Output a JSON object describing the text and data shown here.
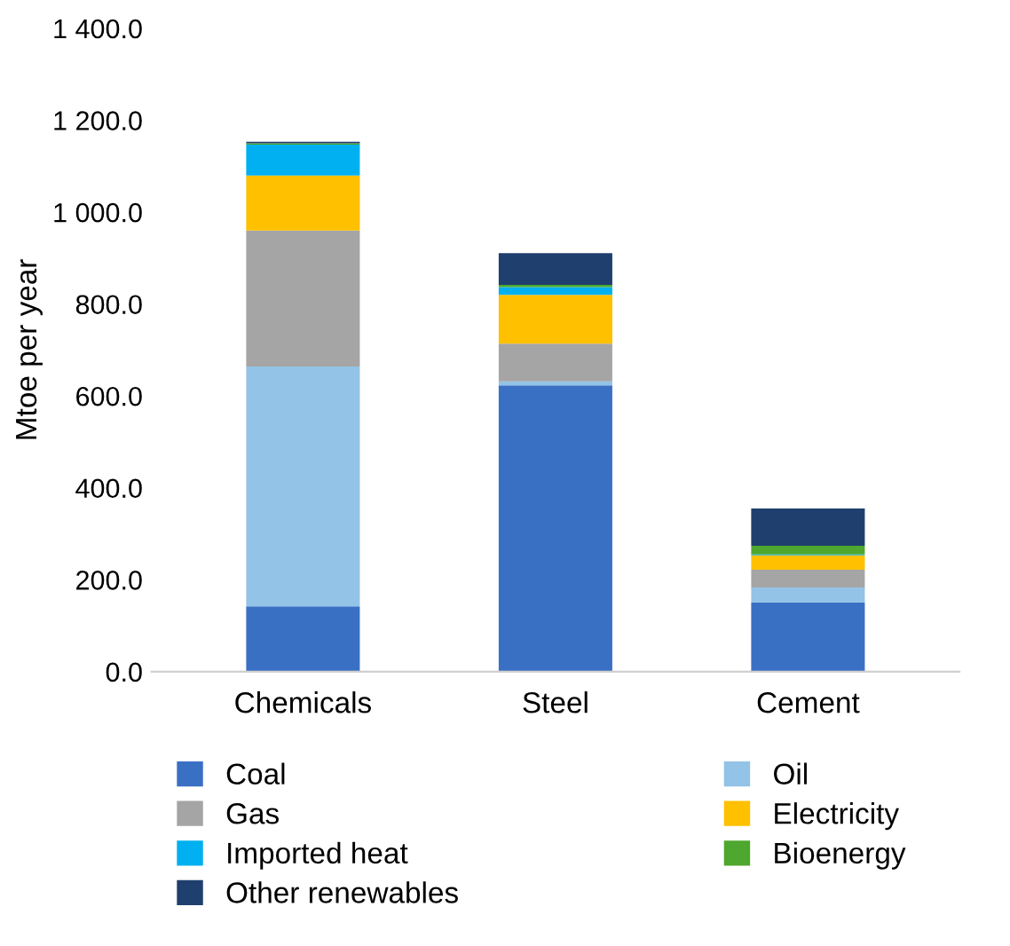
{
  "chart_data": {
    "type": "bar",
    "stacked": true,
    "ylabel": "Mtoe per year",
    "categories": [
      "Chemicals",
      "Steel",
      "Cement"
    ],
    "series": [
      {
        "name": "Coal",
        "color": "#3a70c4",
        "values": [
          142,
          623,
          151
        ]
      },
      {
        "name": "Oil",
        "color": "#93c3e6",
        "values": [
          522,
          9,
          32
        ]
      },
      {
        "name": "Gas",
        "color": "#a5a5a5",
        "values": [
          296,
          82,
          39
        ]
      },
      {
        "name": "Electricity",
        "color": "#ffc000",
        "values": [
          120,
          106,
          31
        ]
      },
      {
        "name": "Imported heat",
        "color": "#00b0f0",
        "values": [
          67,
          17,
          2
        ]
      },
      {
        "name": "Bioenergy",
        "color": "#4ea72e",
        "values": [
          3,
          5,
          19
        ]
      },
      {
        "name": "Other renewables",
        "color": "#1f3f6e",
        "values": [
          3,
          69,
          81
        ]
      }
    ],
    "ylim": [
      0,
      1400
    ],
    "yticks": [
      {
        "value": 0,
        "label": "0.0"
      },
      {
        "value": 200,
        "label": "200.0"
      },
      {
        "value": 400,
        "label": "400.0"
      },
      {
        "value": 600,
        "label": "600.0"
      },
      {
        "value": 800,
        "label": "800.0"
      },
      {
        "value": 1000,
        "label": "1 000.0"
      },
      {
        "value": 1200,
        "label": "1 200.0"
      },
      {
        "value": 1400,
        "label": "1 400.0"
      }
    ],
    "grid": false,
    "legend": "bottom"
  }
}
